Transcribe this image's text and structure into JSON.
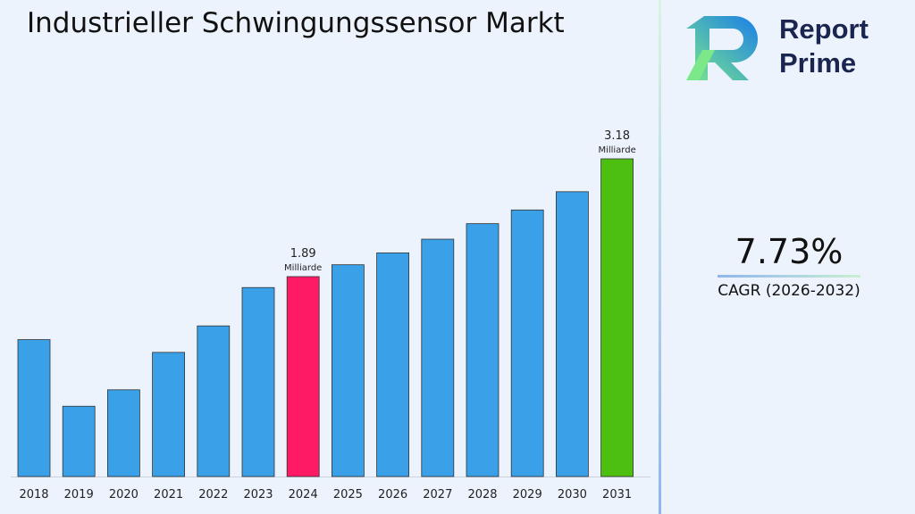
{
  "title": "Industrieller Schwingungssensor Markt",
  "logo": {
    "line1": "Report",
    "line2": "Prime"
  },
  "cagr": {
    "value": "7.73%",
    "label": "CAGR (2026-2032)"
  },
  "colors": {
    "bar": "#3aa0e8",
    "highlight_2024": "#ff1a66",
    "highlight_2031": "#4cbf10"
  },
  "chart_data": {
    "type": "bar",
    "title": "Industrieller Schwingungssensor Markt",
    "categories": [
      "2018",
      "2019",
      "2020",
      "2021",
      "2022",
      "2023",
      "2024",
      "2025",
      "2026",
      "2027",
      "2028",
      "2029",
      "2030",
      "2031"
    ],
    "values": [
      1.2,
      0.47,
      0.65,
      1.06,
      1.35,
      1.77,
      1.89,
      2.02,
      2.15,
      2.3,
      2.47,
      2.62,
      2.82,
      3.18
    ],
    "unit": "Milliarde",
    "annotations": [
      {
        "category": "2024",
        "value": "1.89",
        "unit": "Milliarde"
      },
      {
        "category": "2031",
        "value": "3.18",
        "unit": "Milliarde"
      }
    ],
    "grid": false,
    "legend": "none"
  }
}
